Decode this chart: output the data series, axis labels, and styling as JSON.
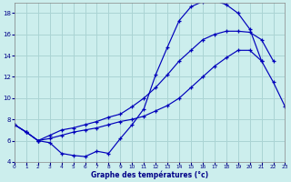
{
  "title": "Graphe des températures (°c)",
  "bg_color": "#cceeed",
  "grid_color": "#aad4d4",
  "line_color": "#0000bb",
  "xlim": [
    0,
    23
  ],
  "ylim": [
    4,
    19
  ],
  "yticks": [
    4,
    6,
    8,
    10,
    12,
    14,
    16,
    18
  ],
  "xticks": [
    0,
    1,
    2,
    3,
    4,
    5,
    6,
    7,
    8,
    9,
    10,
    11,
    12,
    13,
    14,
    15,
    16,
    17,
    18,
    19,
    20,
    21,
    22,
    23
  ],
  "series1_x": [
    0,
    1,
    2,
    3,
    4,
    5,
    6,
    7,
    8,
    9,
    10,
    11,
    12,
    13,
    14,
    15,
    16,
    17,
    18,
    19,
    20,
    21
  ],
  "series1_y": [
    7.5,
    6.8,
    6.0,
    5.8,
    4.8,
    4.6,
    4.5,
    5.0,
    4.8,
    6.2,
    7.5,
    9.0,
    12.2,
    14.8,
    17.3,
    18.6,
    19.1,
    19.2,
    18.8,
    18.0,
    16.5,
    13.5
  ],
  "series2_x": [
    0,
    1,
    2,
    3,
    4,
    5,
    6,
    7,
    8,
    9,
    10,
    11,
    12,
    13,
    14,
    15,
    16,
    17,
    18,
    19,
    20,
    21,
    22,
    23
  ],
  "series2_y": [
    7.5,
    6.8,
    6.0,
    6.2,
    6.5,
    6.8,
    7.0,
    7.2,
    7.5,
    7.8,
    8.0,
    8.3,
    8.8,
    9.3,
    10.0,
    11.0,
    12.0,
    13.0,
    13.8,
    14.5,
    14.5,
    13.5,
    11.5,
    9.2
  ],
  "series3_x": [
    0,
    1,
    2,
    3,
    4,
    5,
    6,
    7,
    8,
    9,
    10,
    11,
    12,
    13,
    14,
    15,
    16,
    17,
    18,
    19,
    20,
    21,
    22
  ],
  "series3_y": [
    7.5,
    6.8,
    6.0,
    6.5,
    7.0,
    7.2,
    7.5,
    7.8,
    8.2,
    8.5,
    9.2,
    10.0,
    11.0,
    12.2,
    13.5,
    14.5,
    15.5,
    16.0,
    16.3,
    16.3,
    16.2,
    15.5,
    13.5
  ]
}
